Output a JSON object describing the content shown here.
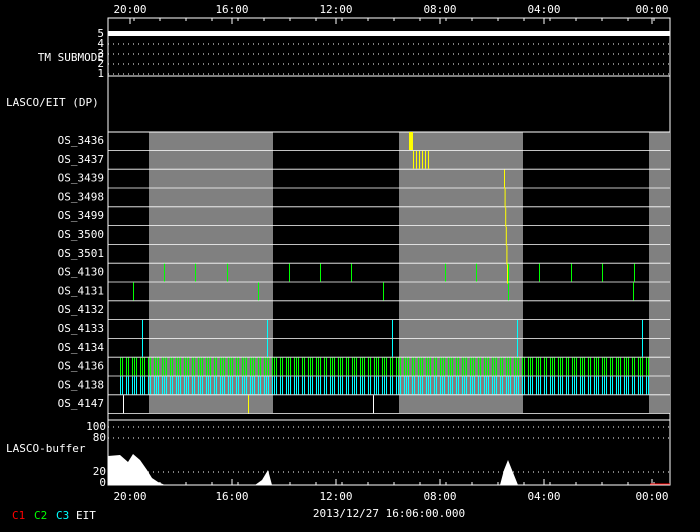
{
  "top_axis": {
    "labels": [
      "20:00",
      "16:00",
      "12:00",
      "08:00",
      "04:00",
      "00:00"
    ]
  },
  "submode": {
    "label": "TM SUBMODE",
    "levels": [
      "5",
      "4",
      "3",
      "2",
      "1"
    ]
  },
  "dp_label": "LASCO/EIT (DP)",
  "rows": [
    "OS_3436",
    "OS_3437",
    "OS_3439",
    "OS_3498",
    "OS_3499",
    "OS_3500",
    "OS_3501",
    "OS_4130",
    "OS_4131",
    "OS_4132",
    "OS_4133",
    "OS_4134",
    "OS_4136",
    "OS_4138",
    "OS_4147"
  ],
  "buffer": {
    "label": "LASCO-buffer",
    "ticks": [
      "100",
      "80",
      "20",
      "0"
    ]
  },
  "bottom_axis": {
    "labels": [
      "20:00",
      "16:00",
      "12:00",
      "08:00",
      "04:00",
      "00:00"
    ],
    "date": "2013/12/27 16:06:00.000"
  },
  "legend": [
    "C1",
    "C2",
    "C3",
    "EIT"
  ]
}
